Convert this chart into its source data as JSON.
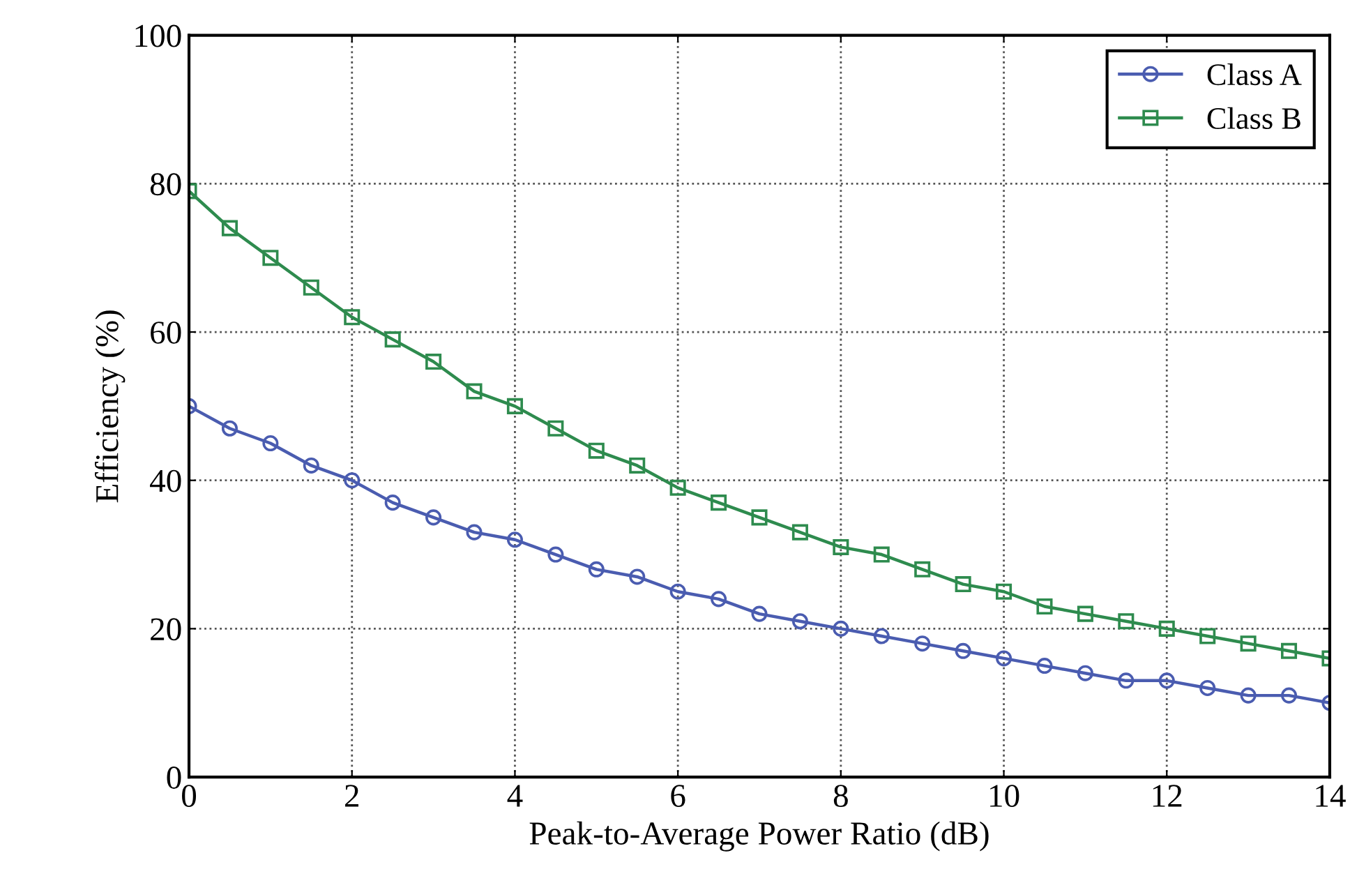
{
  "chart_data": {
    "type": "line",
    "xlabel": "Peak-to-Average Power Ratio (dB)",
    "ylabel": "Efficiency (%)",
    "x": [
      0,
      0.5,
      1,
      1.5,
      2,
      2.5,
      3,
      3.5,
      4,
      4.5,
      5,
      5.5,
      6,
      6.5,
      7,
      7.5,
      8,
      8.5,
      9,
      9.5,
      10,
      10.5,
      11,
      11.5,
      12,
      12.5,
      13,
      13.5,
      14
    ],
    "series": [
      {
        "name": "Class A",
        "color": "#4a5cb0",
        "marker": "circle",
        "values": [
          50,
          47,
          45,
          42,
          40,
          37,
          35,
          33,
          32,
          30,
          28,
          27,
          25,
          24,
          22,
          21,
          20,
          19,
          18,
          17,
          16,
          15,
          14,
          13,
          13,
          12,
          11,
          11,
          10
        ]
      },
      {
        "name": "Class B",
        "color": "#2e8b4e",
        "marker": "square",
        "values": [
          79,
          74,
          70,
          66,
          62,
          59,
          56,
          52,
          50,
          47,
          44,
          42,
          39,
          37,
          35,
          33,
          31,
          30,
          28,
          26,
          25,
          23,
          22,
          21,
          20,
          19,
          18,
          17,
          16
        ]
      }
    ],
    "xlim": [
      0,
      14
    ],
    "xticks": [
      0,
      2,
      4,
      6,
      8,
      10,
      12,
      14
    ],
    "ylim": [
      0,
      100
    ],
    "yticks": [
      0,
      20,
      40,
      60,
      80,
      100
    ],
    "grid": true,
    "legend": "top right",
    "line_style": "solid"
  }
}
